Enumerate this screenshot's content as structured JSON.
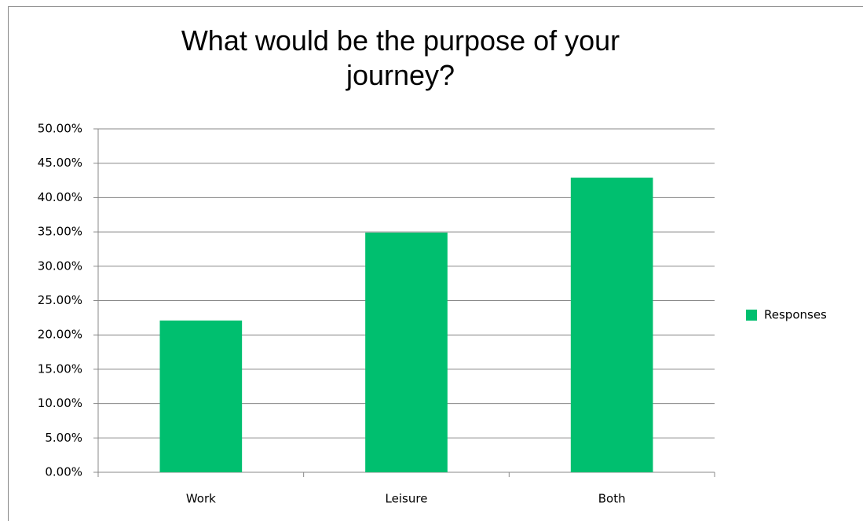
{
  "chart_data": {
    "type": "bar",
    "title": "What would be the purpose of your journey?",
    "categories": [
      "Work",
      "Leisure",
      "Both"
    ],
    "series": [
      {
        "name": "Responses",
        "color": "#00bf6f",
        "values": [
          22.1,
          34.9,
          42.9
        ]
      }
    ],
    "ylim": [
      0,
      50
    ],
    "yticks": [
      {
        "value": 0,
        "label": "0.00%"
      },
      {
        "value": 5,
        "label": "5.00%"
      },
      {
        "value": 10,
        "label": "10.00%"
      },
      {
        "value": 15,
        "label": "15.00%"
      },
      {
        "value": 20,
        "label": "20.00%"
      },
      {
        "value": 25,
        "label": "25.00%"
      },
      {
        "value": 30,
        "label": "30.00%"
      },
      {
        "value": 35,
        "label": "35.00%"
      },
      {
        "value": 40,
        "label": "40.00%"
      },
      {
        "value": 45,
        "label": "45.00%"
      },
      {
        "value": 50,
        "label": "50.00%"
      }
    ],
    "grid": true,
    "legend": "right"
  }
}
